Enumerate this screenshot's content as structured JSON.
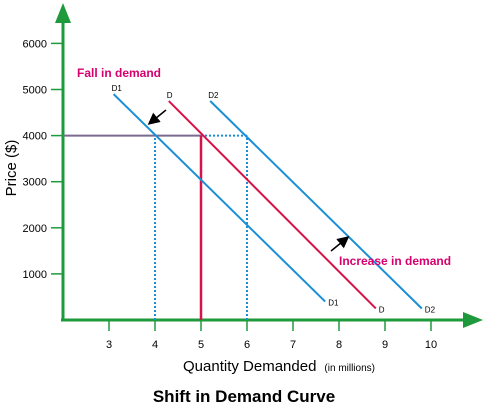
{
  "chart_data": {
    "type": "line",
    "title": "Shift in Demand Curve",
    "xlabel": "Quantity Demanded",
    "xlabel_unit": "(in millions)",
    "ylabel": "Price ($)",
    "x_ticks": [
      3,
      4,
      5,
      6,
      7,
      8,
      9,
      10
    ],
    "y_ticks": [
      1000,
      2000,
      3000,
      4000,
      5000,
      6000
    ],
    "xlim": [
      2,
      11
    ],
    "ylim": [
      0,
      7000
    ],
    "grid": false,
    "series": [
      {
        "name": "D1",
        "color": "#1a8fd6",
        "x": [
          3.1,
          7.7
        ],
        "y": [
          4900,
          400
        ]
      },
      {
        "name": "D",
        "color": "#d6124a",
        "x": [
          4.3,
          8.8
        ],
        "y": [
          4750,
          250
        ]
      },
      {
        "name": "D2",
        "color": "#1a8fd6",
        "x": [
          5.2,
          9.8
        ],
        "y": [
          4750,
          250
        ]
      }
    ],
    "reference_lines": [
      {
        "kind": "horizontal",
        "y": 4000,
        "x_from": 2,
        "x_to": 5,
        "color": "#7a6a8f",
        "style": "solid"
      },
      {
        "kind": "horizontal",
        "y": 4000,
        "x_from": 5,
        "x_to": 6,
        "color": "#1a8fd6",
        "style": "dotted"
      },
      {
        "kind": "vertical",
        "x": 5,
        "y_from": 0,
        "y_to": 4000,
        "color": "#d6124a",
        "style": "solid"
      },
      {
        "kind": "vertical",
        "x": 4,
        "y_from": 0,
        "y_to": 4000,
        "color": "#1a8fd6",
        "style": "dotted"
      },
      {
        "kind": "vertical",
        "x": 6,
        "y_from": 0,
        "y_to": 4000,
        "color": "#1a8fd6",
        "style": "dotted"
      }
    ],
    "annotations": [
      {
        "text": "Fall in demand",
        "color": "#d6006f",
        "arrow": "towards D1"
      },
      {
        "text": "Increase in demand",
        "color": "#d6006f",
        "arrow": "towards D2"
      }
    ],
    "axis_color": "#1e9a3c"
  }
}
